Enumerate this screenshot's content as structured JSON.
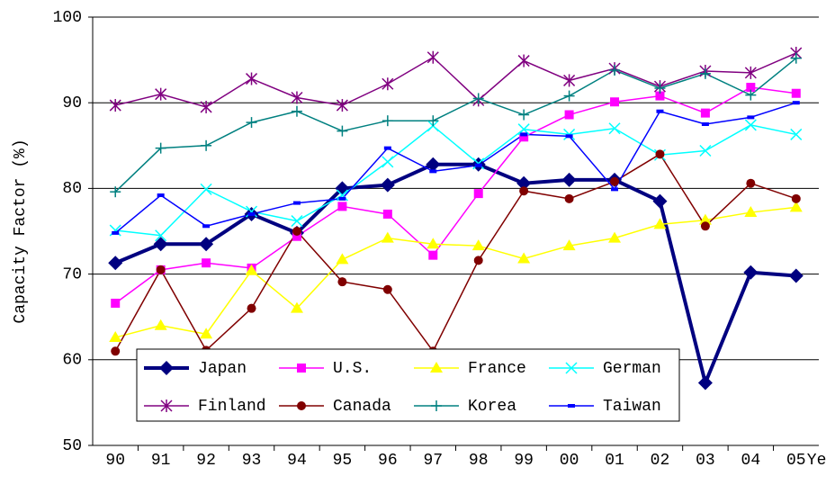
{
  "chart_data": {
    "type": "line",
    "ylabel": "Capacity Factor (%)",
    "xlabel": "Ye",
    "categories": [
      "90",
      "91",
      "92",
      "93",
      "94",
      "95",
      "96",
      "97",
      "98",
      "99",
      "00",
      "01",
      "02",
      "03",
      "04",
      "05"
    ],
    "ylim": [
      50,
      100
    ],
    "yticks": [
      50,
      60,
      70,
      80,
      90,
      100
    ],
    "grid": true,
    "legend": "lower left",
    "series": [
      {
        "name": "Japan",
        "color": "#000080",
        "marker": "diamond",
        "values": [
          71.3,
          73.5,
          73.5,
          77.0,
          74.8,
          80.0,
          80.4,
          82.8,
          82.8,
          80.6,
          81.0,
          81.0,
          78.5,
          57.3,
          70.2,
          69.8
        ]
      },
      {
        "name": "U.S.",
        "color": "#ff00ff",
        "marker": "square",
        "values": [
          66.6,
          70.5,
          71.3,
          70.7,
          74.4,
          77.9,
          77.0,
          72.2,
          79.4,
          86.0,
          88.6,
          90.1,
          90.8,
          88.8,
          91.8,
          91.1
        ]
      },
      {
        "name": "France",
        "color": "#ffff00",
        "marker": "triangle",
        "values": [
          62.6,
          64.0,
          63.0,
          70.4,
          66.0,
          71.7,
          74.2,
          73.5,
          73.3,
          71.8,
          73.3,
          74.2,
          75.8,
          76.3,
          77.2,
          77.8
        ]
      },
      {
        "name": "German",
        "color": "#00ffff",
        "marker": "x",
        "values": [
          75.1,
          74.5,
          79.9,
          77.3,
          76.2,
          79.2,
          83.1,
          87.3,
          82.9,
          86.9,
          86.3,
          87.0,
          83.9,
          84.4,
          87.4,
          86.3
        ]
      },
      {
        "name": "Finland",
        "color": "#800080",
        "marker": "asterisk",
        "values": [
          89.7,
          91.0,
          89.5,
          92.8,
          90.6,
          89.7,
          92.2,
          95.3,
          90.3,
          94.9,
          92.6,
          94.0,
          91.9,
          93.7,
          93.5,
          95.8
        ]
      },
      {
        "name": "Canada",
        "color": "#800000",
        "marker": "circle",
        "values": [
          61.0,
          70.5,
          61.1,
          66.0,
          75.0,
          69.1,
          68.2,
          61.0,
          71.6,
          79.7,
          78.8,
          80.8,
          84.0,
          75.6,
          80.6,
          78.8
        ]
      },
      {
        "name": "Korea",
        "color": "#008080",
        "marker": "plus",
        "values": [
          79.6,
          84.7,
          85.0,
          87.7,
          89.0,
          86.7,
          87.9,
          87.9,
          90.5,
          88.6,
          90.8,
          93.8,
          91.7,
          93.4,
          90.9,
          95.2
        ]
      },
      {
        "name": "Taiwan",
        "color": "#0000ff",
        "marker": "dash",
        "values": [
          74.8,
          79.2,
          75.6,
          77.0,
          78.3,
          78.8,
          84.7,
          82.0,
          82.7,
          86.3,
          86.1,
          79.9,
          89.0,
          87.5,
          88.3,
          90.0
        ]
      }
    ]
  }
}
